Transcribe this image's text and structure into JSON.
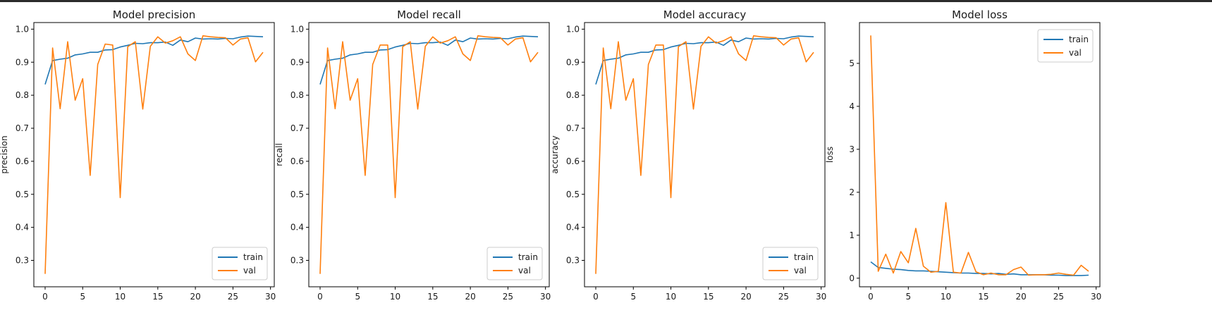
{
  "figure": {
    "colors": {
      "train": "#1f77b4",
      "val": "#ff7f0e",
      "axes": "#000000",
      "background": "#ffffff"
    }
  },
  "chart_data": [
    {
      "type": "line",
      "title": "Model precision",
      "xlabel": "",
      "ylabel": "precision",
      "xlim": [
        -1.5,
        30.5
      ],
      "ylim": [
        0.22,
        1.02
      ],
      "xticks": [
        "0",
        "5",
        "10",
        "15",
        "20",
        "25",
        "30"
      ],
      "yticks": [
        "0.3",
        "0.4",
        "0.5",
        "0.6",
        "0.7",
        "0.8",
        "0.9",
        "1.0"
      ],
      "legend": {
        "position": "lower-right",
        "entries": [
          "train",
          "val"
        ]
      },
      "x": [
        0,
        1,
        2,
        3,
        4,
        5,
        6,
        7,
        8,
        9,
        10,
        11,
        12,
        13,
        14,
        15,
        16,
        17,
        18,
        19,
        20,
        21,
        22,
        23,
        24,
        25,
        26,
        27,
        28,
        29
      ],
      "series": [
        {
          "name": "train",
          "values": [
            0.833,
            0.905,
            0.909,
            0.912,
            0.922,
            0.925,
            0.93,
            0.93,
            0.937,
            0.938,
            0.946,
            0.951,
            0.957,
            0.956,
            0.959,
            0.959,
            0.961,
            0.951,
            0.967,
            0.962,
            0.973,
            0.97,
            0.971,
            0.97,
            0.972,
            0.971,
            0.976,
            0.979,
            0.978,
            0.977
          ]
        },
        {
          "name": "val",
          "values": [
            0.259,
            0.943,
            0.759,
            0.962,
            0.785,
            0.85,
            0.557,
            0.893,
            0.955,
            0.952,
            0.49,
            0.947,
            0.962,
            0.758,
            0.948,
            0.977,
            0.958,
            0.965,
            0.977,
            0.925,
            0.905,
            0.98,
            0.977,
            0.975,
            0.974,
            0.952,
            0.97,
            0.974,
            0.901,
            0.93
          ]
        }
      ]
    },
    {
      "type": "line",
      "title": "Model recall",
      "xlabel": "",
      "ylabel": "recall",
      "xlim": [
        -1.5,
        30.5
      ],
      "ylim": [
        0.22,
        1.02
      ],
      "xticks": [
        "0",
        "5",
        "10",
        "15",
        "20",
        "25",
        "30"
      ],
      "yticks": [
        "0.3",
        "0.4",
        "0.5",
        "0.6",
        "0.7",
        "0.8",
        "0.9",
        "1.0"
      ],
      "legend": {
        "position": "lower-right",
        "entries": [
          "train",
          "val"
        ]
      },
      "x": [
        0,
        1,
        2,
        3,
        4,
        5,
        6,
        7,
        8,
        9,
        10,
        11,
        12,
        13,
        14,
        15,
        16,
        17,
        18,
        19,
        20,
        21,
        22,
        23,
        24,
        25,
        26,
        27,
        28,
        29
      ],
      "series": [
        {
          "name": "train",
          "values": [
            0.833,
            0.905,
            0.909,
            0.912,
            0.922,
            0.925,
            0.93,
            0.93,
            0.937,
            0.938,
            0.946,
            0.951,
            0.957,
            0.956,
            0.959,
            0.959,
            0.961,
            0.951,
            0.967,
            0.962,
            0.973,
            0.97,
            0.971,
            0.97,
            0.972,
            0.971,
            0.976,
            0.979,
            0.978,
            0.977
          ]
        },
        {
          "name": "val",
          "values": [
            0.259,
            0.943,
            0.759,
            0.962,
            0.785,
            0.85,
            0.557,
            0.893,
            0.952,
            0.952,
            0.49,
            0.947,
            0.962,
            0.758,
            0.948,
            0.977,
            0.958,
            0.965,
            0.977,
            0.925,
            0.905,
            0.98,
            0.977,
            0.975,
            0.974,
            0.952,
            0.97,
            0.974,
            0.901,
            0.93
          ]
        }
      ]
    },
    {
      "type": "line",
      "title": "Model accuracy",
      "xlabel": "",
      "ylabel": "accuracy",
      "xlim": [
        -1.5,
        30.5
      ],
      "ylim": [
        0.22,
        1.02
      ],
      "xticks": [
        "0",
        "5",
        "10",
        "15",
        "20",
        "25",
        "30"
      ],
      "yticks": [
        "0.3",
        "0.4",
        "0.5",
        "0.6",
        "0.7",
        "0.8",
        "0.9",
        "1.0"
      ],
      "legend": {
        "position": "lower-right",
        "entries": [
          "train",
          "val"
        ]
      },
      "x": [
        0,
        1,
        2,
        3,
        4,
        5,
        6,
        7,
        8,
        9,
        10,
        11,
        12,
        13,
        14,
        15,
        16,
        17,
        18,
        19,
        20,
        21,
        22,
        23,
        24,
        25,
        26,
        27,
        28,
        29
      ],
      "series": [
        {
          "name": "train",
          "values": [
            0.833,
            0.905,
            0.909,
            0.912,
            0.922,
            0.925,
            0.93,
            0.93,
            0.937,
            0.938,
            0.946,
            0.951,
            0.957,
            0.956,
            0.959,
            0.959,
            0.961,
            0.951,
            0.967,
            0.962,
            0.973,
            0.97,
            0.971,
            0.97,
            0.972,
            0.971,
            0.976,
            0.979,
            0.978,
            0.977
          ]
        },
        {
          "name": "val",
          "values": [
            0.259,
            0.943,
            0.759,
            0.962,
            0.785,
            0.85,
            0.557,
            0.893,
            0.952,
            0.952,
            0.49,
            0.947,
            0.962,
            0.758,
            0.948,
            0.977,
            0.958,
            0.965,
            0.977,
            0.925,
            0.905,
            0.98,
            0.977,
            0.975,
            0.974,
            0.952,
            0.97,
            0.974,
            0.901,
            0.93
          ]
        }
      ]
    },
    {
      "type": "line",
      "title": "Model loss",
      "xlabel": "",
      "ylabel": "loss",
      "xlim": [
        -1.5,
        30.5
      ],
      "ylim": [
        -0.2,
        5.95
      ],
      "xticks": [
        "0",
        "5",
        "10",
        "15",
        "20",
        "25",
        "30"
      ],
      "yticks": [
        "0",
        "1",
        "2",
        "3",
        "4",
        "5"
      ],
      "legend": {
        "position": "upper-right",
        "entries": [
          "train",
          "val"
        ]
      },
      "x": [
        0,
        1,
        2,
        3,
        4,
        5,
        6,
        7,
        8,
        9,
        10,
        11,
        12,
        13,
        14,
        15,
        16,
        17,
        18,
        19,
        20,
        21,
        22,
        23,
        24,
        25,
        26,
        27,
        28,
        29
      ],
      "series": [
        {
          "name": "train",
          "values": [
            0.38,
            0.25,
            0.23,
            0.21,
            0.2,
            0.18,
            0.17,
            0.17,
            0.16,
            0.15,
            0.14,
            0.13,
            0.12,
            0.12,
            0.11,
            0.11,
            0.1,
            0.11,
            0.09,
            0.1,
            0.08,
            0.08,
            0.08,
            0.08,
            0.07,
            0.07,
            0.06,
            0.06,
            0.06,
            0.07
          ]
        },
        {
          "name": "val",
          "values": [
            5.65,
            0.16,
            0.56,
            0.12,
            0.62,
            0.36,
            1.16,
            0.28,
            0.14,
            0.16,
            1.76,
            0.14,
            0.12,
            0.6,
            0.15,
            0.08,
            0.12,
            0.08,
            0.08,
            0.2,
            0.26,
            0.07,
            0.08,
            0.08,
            0.09,
            0.12,
            0.09,
            0.07,
            0.3,
            0.16
          ]
        }
      ]
    }
  ]
}
